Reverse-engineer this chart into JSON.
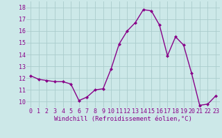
{
  "x": [
    0,
    1,
    2,
    3,
    4,
    5,
    6,
    7,
    8,
    9,
    10,
    11,
    12,
    13,
    14,
    15,
    16,
    17,
    18,
    19,
    20,
    21,
    22,
    23
  ],
  "y": [
    12.2,
    11.9,
    11.8,
    11.7,
    11.7,
    11.5,
    10.1,
    10.4,
    11.0,
    11.1,
    12.8,
    14.9,
    16.0,
    16.7,
    17.8,
    17.7,
    16.5,
    13.9,
    15.5,
    14.8,
    12.4,
    9.7,
    9.8,
    10.5
  ],
  "line_color": "#880088",
  "marker": "D",
  "marker_size": 2.0,
  "line_width": 1.0,
  "bg_color": "#cce8e8",
  "grid_color": "#aacccc",
  "xlabel": "Windchill (Refroidissement éolien,°C)",
  "xlabel_color": "#880088",
  "xlabel_fontsize": 6.5,
  "tick_color": "#880088",
  "tick_fontsize": 6.0,
  "ylim": [
    9.5,
    18.5
  ],
  "yticks": [
    10,
    11,
    12,
    13,
    14,
    15,
    16,
    17,
    18
  ],
  "xticks": [
    0,
    1,
    2,
    3,
    4,
    5,
    6,
    7,
    8,
    9,
    10,
    11,
    12,
    13,
    14,
    15,
    16,
    17,
    18,
    19,
    20,
    21,
    22,
    23
  ]
}
